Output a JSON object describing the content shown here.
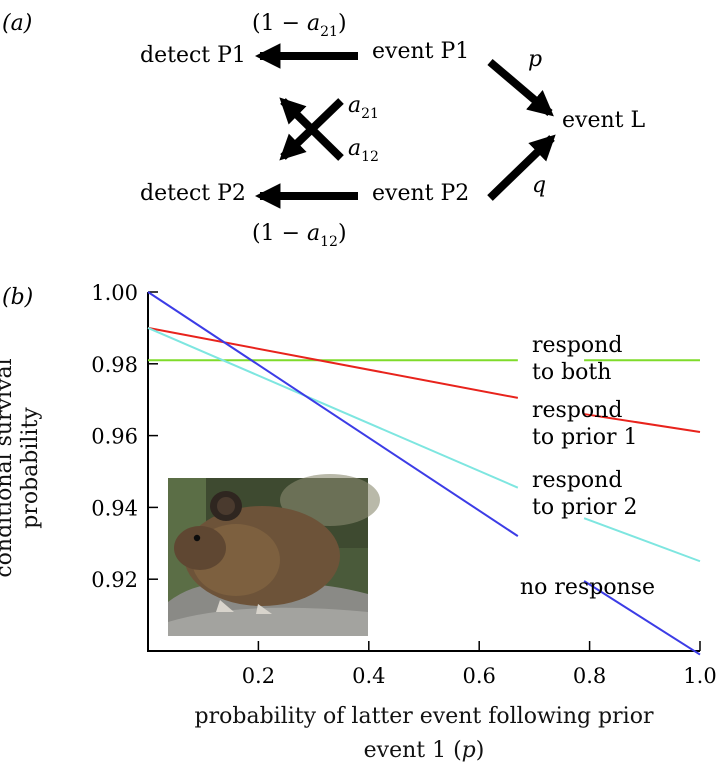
{
  "panel_a": {
    "label": "(a)",
    "nodes": {
      "detect_p1": "detect P1",
      "event_p1": "event P1",
      "event_l": "event L",
      "detect_p2": "detect P2",
      "event_p2": "event P2"
    },
    "edge_labels": {
      "one_minus_a21": [
        "(1 − ",
        "a",
        "21",
        ")"
      ],
      "one_minus_a12": [
        "(1 − ",
        "a",
        "12",
        ")"
      ],
      "a21": [
        "a",
        "21"
      ],
      "a12": [
        "a",
        "12"
      ],
      "p": "p",
      "q": "q"
    }
  },
  "chart_data": {
    "panel_label": "(b)",
    "type": "line",
    "xlabel_line1": "probability of latter event following prior",
    "xlabel_line2_text": "event 1 (",
    "xlabel_line2_var": "p",
    "xlabel_line2_end": ")",
    "ylabel_line1": "conditional survival",
    "ylabel_line2": "probability",
    "xlim": [
      0.0,
      1.0
    ],
    "ylim": [
      0.9,
      1.0
    ],
    "x_ticks": [
      0.2,
      0.4,
      0.6,
      0.8,
      1.0
    ],
    "x_tick_labels": [
      "0.2",
      "0.4",
      "0.6",
      "0.8",
      "1.0"
    ],
    "y_ticks": [
      0.92,
      0.94,
      0.96,
      0.98,
      1.0
    ],
    "y_tick_labels": [
      "0.92",
      "0.94",
      "0.96",
      "0.98",
      "1.00"
    ],
    "series": [
      {
        "name": "respond to both",
        "color": "#7fdb2a",
        "x": [
          0.0,
          0.67,
          0.79,
          1.0
        ],
        "y": [
          0.981,
          0.981,
          0.981,
          0.981
        ],
        "gap": [
          0.67,
          0.79
        ]
      },
      {
        "name": "respond to prior 1",
        "color": "#e8231c",
        "x": [
          0.0,
          0.67,
          0.79,
          1.0
        ],
        "y": [
          0.99,
          0.9705,
          0.966,
          0.961
        ],
        "gap": [
          0.67,
          0.79
        ]
      },
      {
        "name": "respond to prior 2",
        "color": "#7ee6e0",
        "x": [
          0.0,
          0.67,
          0.79,
          1.0
        ],
        "y": [
          0.99,
          0.9455,
          0.937,
          0.925
        ],
        "gap": [
          0.67,
          0.79
        ]
      },
      {
        "name": "no response",
        "color": "#3c3ce6",
        "x": [
          0.0,
          0.67,
          0.79,
          1.0
        ],
        "y": [
          1.0,
          0.932,
          0.9195,
          0.899
        ],
        "gap": [
          0.67,
          0.79
        ]
      }
    ],
    "line_labels": [
      {
        "lines": [
          "respond",
          "to both"
        ]
      },
      {
        "lines": [
          "respond",
          "to prior 1"
        ]
      },
      {
        "lines": [
          "respond",
          "to prior 2"
        ]
      },
      {
        "lines": [
          "no response"
        ]
      }
    ]
  }
}
